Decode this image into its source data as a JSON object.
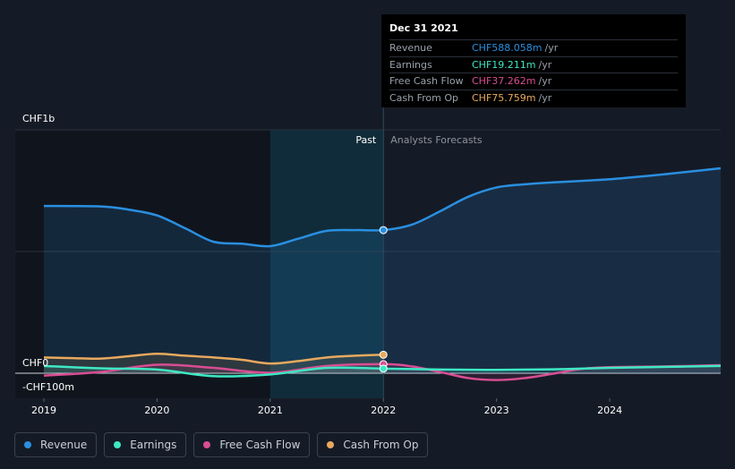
{
  "chart_data": {
    "type": "area",
    "x_ticks": [
      "2019",
      "2020",
      "2021",
      "2022",
      "2023",
      "2024"
    ],
    "y_labels": {
      "top": "CHF1b",
      "zero": "CHF0",
      "bottom": "-CHF100m"
    },
    "ylim": [
      -100,
      1000
    ],
    "xlim": [
      2018.98,
      2024.98
    ],
    "past_label": "Past",
    "forecast_label": "Analysts Forecasts",
    "divider_x": 2022.0,
    "series": [
      {
        "name": "Revenue",
        "color": "#2a8fe0",
        "x": [
          2019.0,
          2019.5,
          2019.75,
          2020.0,
          2020.25,
          2020.5,
          2020.75,
          2021.0,
          2021.25,
          2021.5,
          2021.75,
          2022.0,
          2022.25,
          2022.5,
          2022.75,
          2023.0,
          2023.25,
          2023.5,
          2023.75,
          2024.0,
          2024.25,
          2024.5,
          2024.98
        ],
        "values": [
          687,
          685,
          672,
          648,
          595,
          540,
          532,
          522,
          553,
          585,
          588,
          588,
          610,
          665,
          725,
          763,
          776,
          784,
          790,
          797,
          807,
          818,
          842
        ]
      },
      {
        "name": "Earnings",
        "color": "#3ee8c4",
        "x": [
          2019.0,
          2019.5,
          2020.0,
          2020.5,
          2021.0,
          2021.5,
          2022.0,
          2022.5,
          2023.0,
          2023.5,
          2024.0,
          2024.5,
          2024.98
        ],
        "values": [
          30,
          20,
          15,
          -12,
          -5,
          22,
          19,
          15,
          14,
          16,
          22,
          26,
          30
        ]
      },
      {
        "name": "Free Cash Flow",
        "color": "#d94d93",
        "x": [
          2019.0,
          2019.5,
          2020.0,
          2020.5,
          2021.0,
          2021.5,
          2022.0,
          2022.25,
          2022.5,
          2022.75,
          2023.0,
          2023.25,
          2023.5,
          2023.75,
          2024.0,
          2024.5,
          2024.98
        ],
        "values": [
          -10,
          5,
          35,
          22,
          2,
          30,
          37,
          28,
          5,
          -20,
          -28,
          -20,
          -2,
          18,
          25,
          28,
          33
        ]
      },
      {
        "name": "Cash From Op",
        "color": "#e8a95e",
        "x": [
          2019.0,
          2019.25,
          2019.5,
          2019.75,
          2020.0,
          2020.25,
          2020.5,
          2020.75,
          2021.0,
          2021.25,
          2021.5,
          2021.75,
          2022.0
        ],
        "values": [
          65,
          62,
          60,
          70,
          80,
          72,
          65,
          55,
          40,
          50,
          65,
          72,
          76
        ]
      }
    ]
  },
  "tooltip": {
    "date": "Dec 31 2021",
    "unit": "/yr",
    "rows": [
      {
        "label": "Revenue",
        "value": "CHF588.058m",
        "color": "#2a8fe0"
      },
      {
        "label": "Earnings",
        "value": "CHF19.211m",
        "color": "#3ee8c4"
      },
      {
        "label": "Free Cash Flow",
        "value": "CHF37.262m",
        "color": "#d94d93"
      },
      {
        "label": "Cash From Op",
        "value": "CHF75.759m",
        "color": "#e8a95e"
      }
    ]
  },
  "legend": [
    {
      "label": "Revenue",
      "color": "#2a8fe0"
    },
    {
      "label": "Earnings",
      "color": "#3ee8c4"
    },
    {
      "label": "Free Cash Flow",
      "color": "#d94d93"
    },
    {
      "label": "Cash From Op",
      "color": "#e8a95e"
    }
  ]
}
